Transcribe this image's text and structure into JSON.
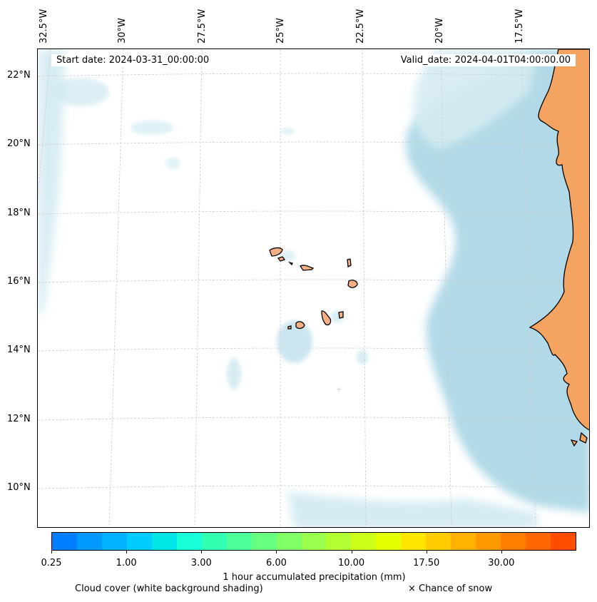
{
  "map": {
    "start_date": "Start date: 2024-03-31_00:00:00",
    "valid_date": "Valid_date: 2024-04-01T04:00:00.00",
    "lon_labels": [
      "32.5°W",
      "30°W",
      "27.5°W",
      "25°W",
      "22.5°W",
      "20°W",
      "17.5°W"
    ],
    "lat_labels": [
      "22°N",
      "20°N",
      "18°N",
      "16°N",
      "14°N",
      "12°N",
      "10°N"
    ],
    "colors": {
      "land": "#f4a460",
      "cloud": "#add8e6",
      "grid": "#cccccc",
      "coast": "#000000"
    }
  },
  "colorbar": {
    "tick_labels": [
      "0.25",
      "1.00",
      "3.00",
      "6.00",
      "10.00",
      "17.50",
      "30.00"
    ],
    "colors": [
      "#0080ff",
      "#0099ff",
      "#00b2ff",
      "#00ccff",
      "#00e5e5",
      "#19ffd9",
      "#33ffb2",
      "#4cff99",
      "#66ff80",
      "#80ff66",
      "#99ff4c",
      "#b2ff33",
      "#ccff19",
      "#e5ff00",
      "#ffe600",
      "#ffcc00",
      "#ffb200",
      "#ff9900",
      "#ff8000",
      "#ff6600",
      "#ff4d00"
    ],
    "label": "1 hour accumulated precipitation (mm)"
  },
  "legend": {
    "cloud_cover": "Cloud cover (white background shading)",
    "snow": "× Chance of snow"
  }
}
